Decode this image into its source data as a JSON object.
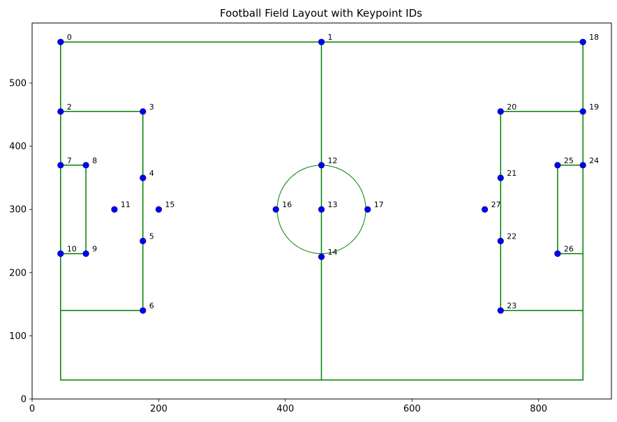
{
  "chart_data": {
    "type": "scatter",
    "title": "Football Field Layout with Keypoint IDs",
    "xlabel": "",
    "ylabel": "",
    "xlim": [
      0,
      915
    ],
    "ylim": [
      0,
      595
    ],
    "xticks": [
      0,
      200,
      400,
      600,
      800
    ],
    "yticks": [
      0,
      100,
      200,
      300,
      400,
      500
    ],
    "grid": false,
    "line_color": "#008000",
    "point_color": "#0000ff",
    "points": [
      {
        "id": "0",
        "x": 45,
        "y": 565
      },
      {
        "id": "1",
        "x": 457,
        "y": 565
      },
      {
        "id": "2",
        "x": 45,
        "y": 455
      },
      {
        "id": "3",
        "x": 175,
        "y": 455
      },
      {
        "id": "4",
        "x": 175,
        "y": 350
      },
      {
        "id": "5",
        "x": 175,
        "y": 250
      },
      {
        "id": "6",
        "x": 175,
        "y": 140
      },
      {
        "id": "7",
        "x": 45,
        "y": 370
      },
      {
        "id": "8",
        "x": 85,
        "y": 370
      },
      {
        "id": "9",
        "x": 85,
        "y": 230
      },
      {
        "id": "10",
        "x": 45,
        "y": 230
      },
      {
        "id": "11",
        "x": 130,
        "y": 300
      },
      {
        "id": "12",
        "x": 457,
        "y": 370
      },
      {
        "id": "13",
        "x": 457,
        "y": 300
      },
      {
        "id": "14",
        "x": 457,
        "y": 225
      },
      {
        "id": "15",
        "x": 200,
        "y": 300
      },
      {
        "id": "16",
        "x": 385,
        "y": 300
      },
      {
        "id": "17",
        "x": 530,
        "y": 300
      },
      {
        "id": "18",
        "x": 870,
        "y": 565
      },
      {
        "id": "19",
        "x": 870,
        "y": 455
      },
      {
        "id": "20",
        "x": 740,
        "y": 455
      },
      {
        "id": "21",
        "x": 740,
        "y": 350
      },
      {
        "id": "22",
        "x": 740,
        "y": 250
      },
      {
        "id": "23",
        "x": 740,
        "y": 140
      },
      {
        "id": "24",
        "x": 870,
        "y": 370
      },
      {
        "id": "25",
        "x": 830,
        "y": 370
      },
      {
        "id": "26",
        "x": 830,
        "y": 230
      },
      {
        "id": "27",
        "x": 715,
        "y": 300
      }
    ],
    "lines": [
      {
        "x": [
          45,
          870,
          870,
          45,
          45
        ],
        "y": [
          565,
          565,
          30,
          30,
          565
        ]
      },
      {
        "x": [
          457,
          457
        ],
        "y": [
          565,
          30
        ]
      },
      {
        "x": [
          45,
          175,
          175,
          45
        ],
        "y": [
          455,
          455,
          140,
          140
        ]
      },
      {
        "x": [
          45,
          85,
          85,
          45
        ],
        "y": [
          370,
          370,
          230,
          230
        ]
      },
      {
        "x": [
          870,
          740,
          740,
          870
        ],
        "y": [
          455,
          455,
          140,
          140
        ]
      },
      {
        "x": [
          870,
          830,
          830,
          870
        ],
        "y": [
          370,
          370,
          230,
          230
        ]
      }
    ],
    "circles": [
      {
        "cx": 457,
        "cy": 300,
        "r": 70
      }
    ]
  }
}
